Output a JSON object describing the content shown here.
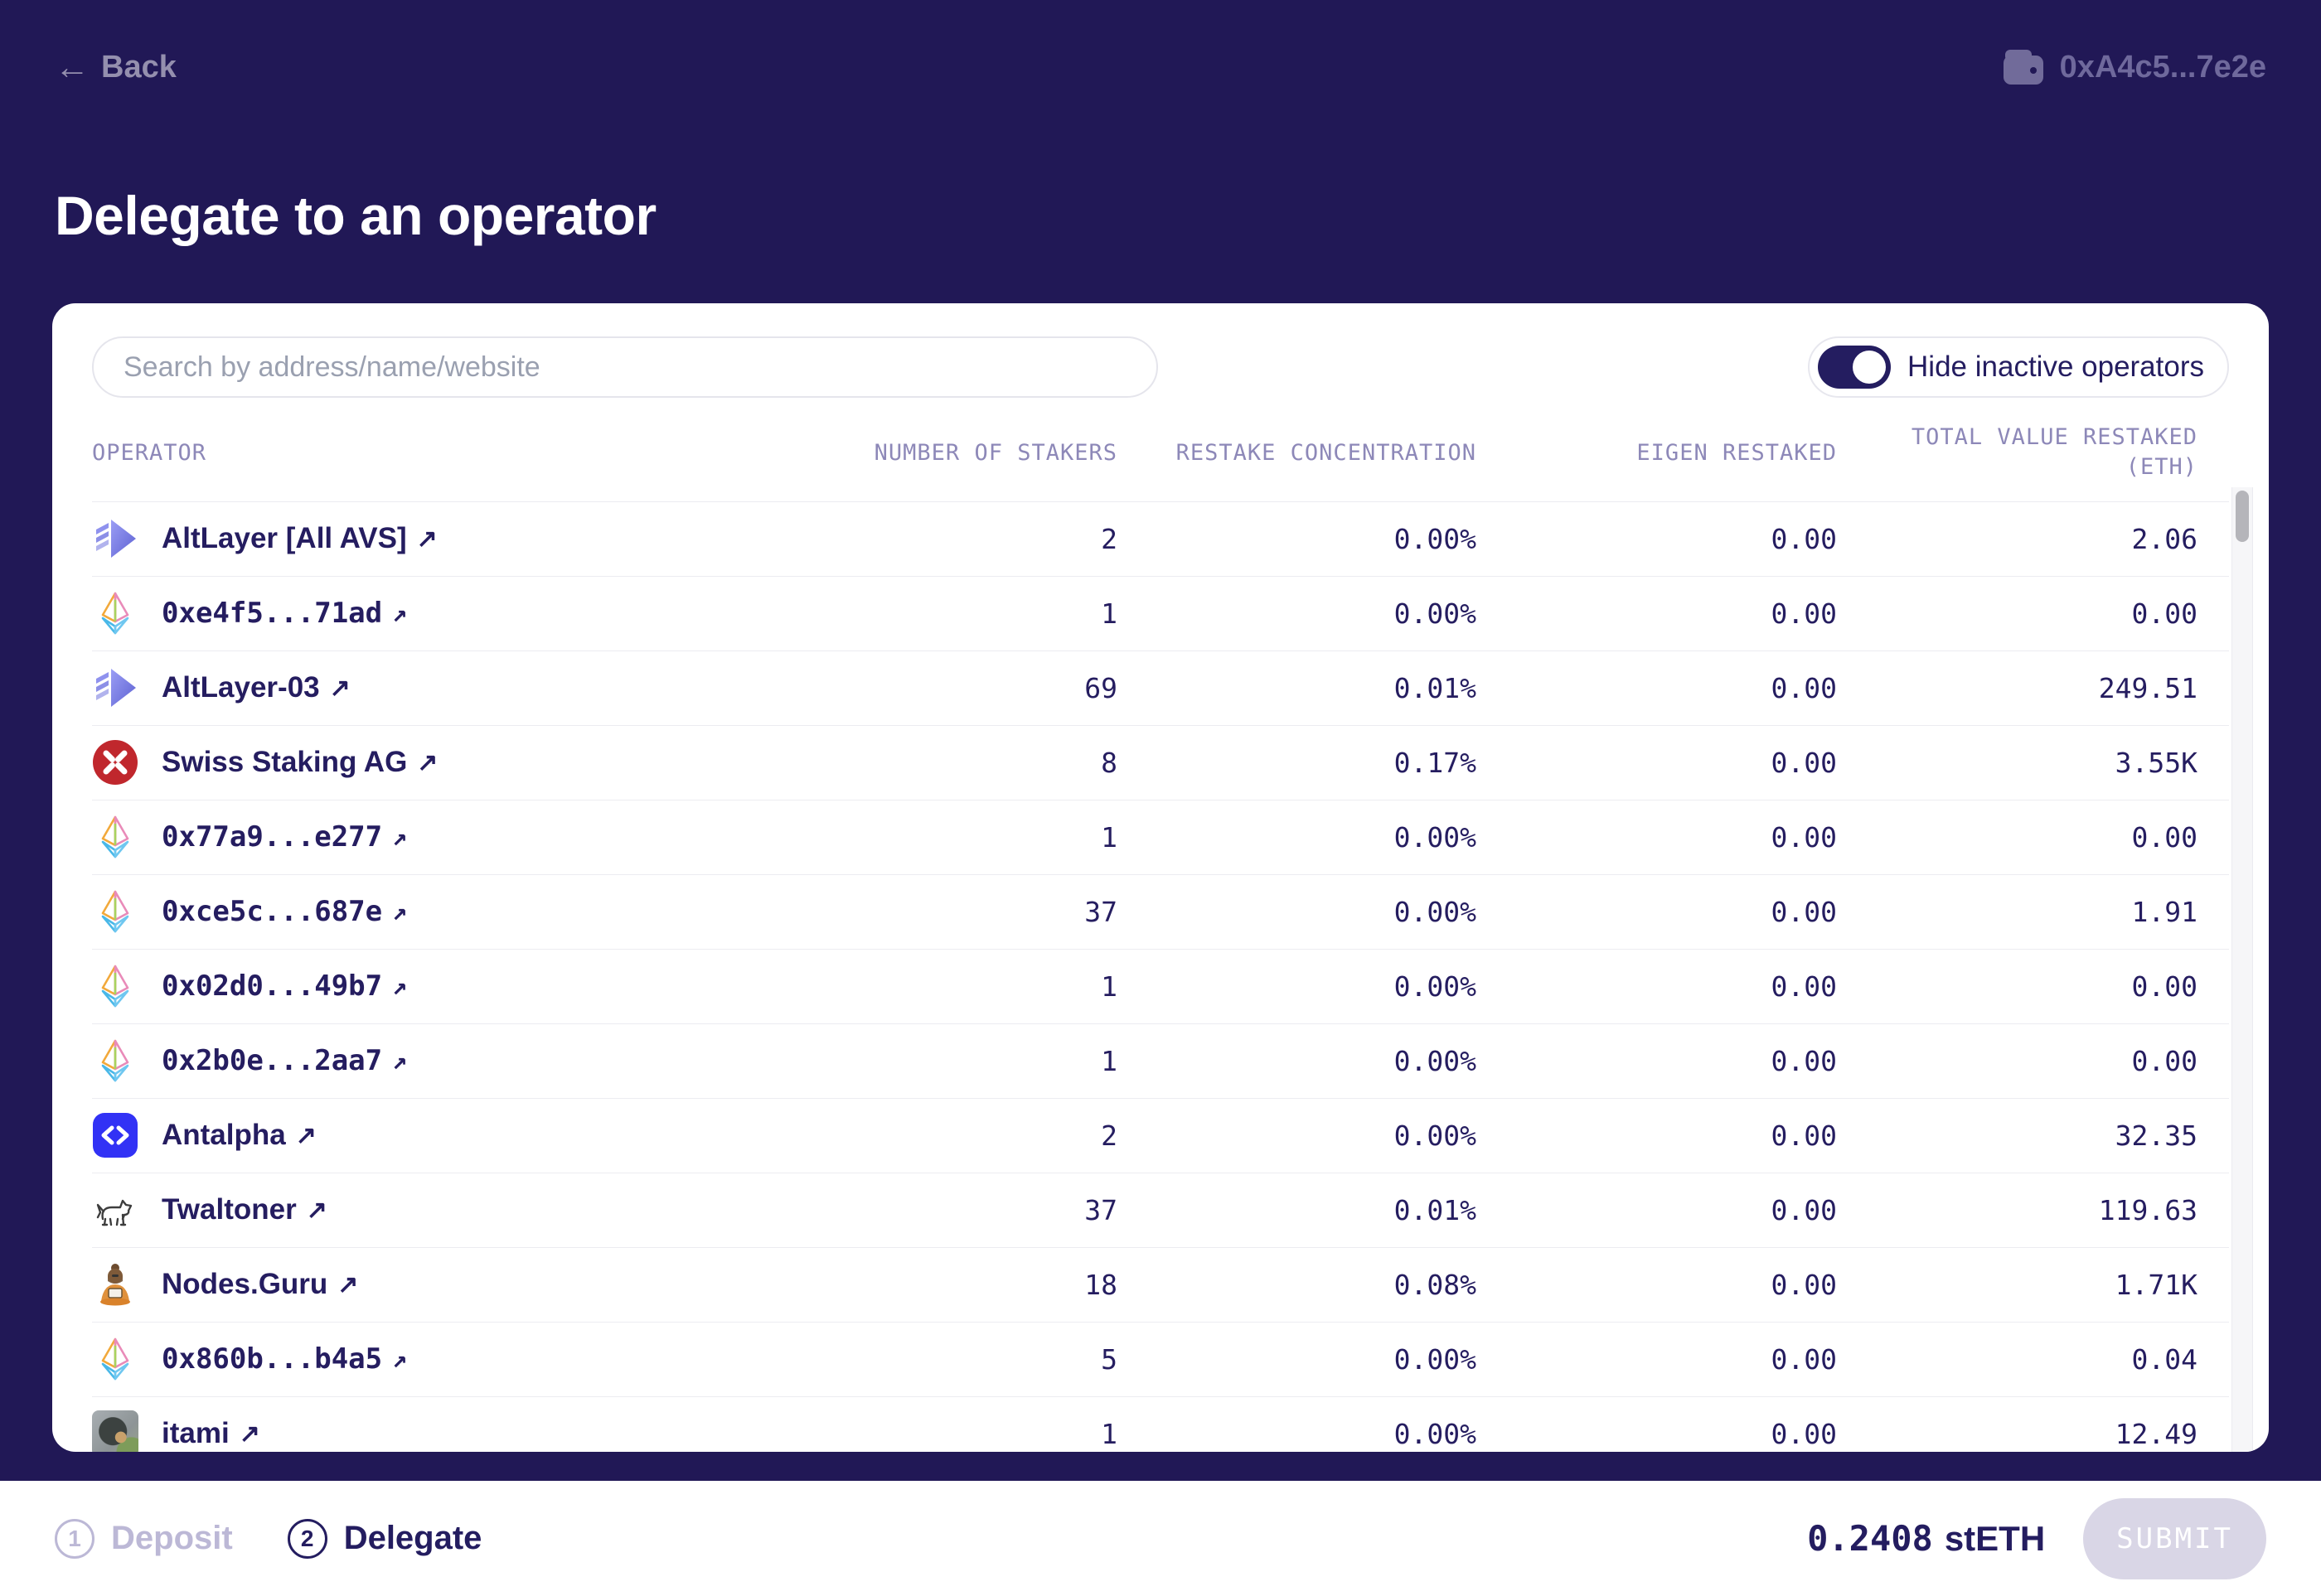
{
  "topbar": {
    "back_label": "Back",
    "wallet_address": "0xA4c5...7e2e"
  },
  "title": "Delegate to an operator",
  "panel": {
    "search_placeholder": "Search by address/name/website",
    "toggle_label": "Hide inactive operators",
    "toggle_on": true,
    "columns": {
      "operator": "OPERATOR",
      "stakers": "NUMBER OF STAKERS",
      "concentration": "RESTAKE CONCENTRATION",
      "eigen": "EIGEN RESTAKED",
      "total_line1": "TOTAL VALUE RESTAKED",
      "total_line2": "(ETH)"
    },
    "rows": [
      {
        "name": "AltLayer [All AVS]",
        "icon": "altlayer-logo",
        "mono": false,
        "stakers": "2",
        "concentration": "0.00%",
        "eigen": "0.00",
        "total": "2.06"
      },
      {
        "name": "0xe4f5...71ad",
        "icon": "eth-diamond-icon",
        "mono": true,
        "stakers": "1",
        "concentration": "0.00%",
        "eigen": "0.00",
        "total": "0.00"
      },
      {
        "name": "AltLayer-03",
        "icon": "altlayer-logo",
        "mono": false,
        "stakers": "69",
        "concentration": "0.01%",
        "eigen": "0.00",
        "total": "249.51"
      },
      {
        "name": "Swiss Staking AG",
        "icon": "swiss-staking-logo",
        "mono": false,
        "stakers": "8",
        "concentration": "0.17%",
        "eigen": "0.00",
        "total": "3.55K"
      },
      {
        "name": "0x77a9...e277",
        "icon": "eth-diamond-icon",
        "mono": true,
        "stakers": "1",
        "concentration": "0.00%",
        "eigen": "0.00",
        "total": "0.00"
      },
      {
        "name": "0xce5c...687e",
        "icon": "eth-diamond-icon",
        "mono": true,
        "stakers": "37",
        "concentration": "0.00%",
        "eigen": "0.00",
        "total": "1.91"
      },
      {
        "name": "0x02d0...49b7",
        "icon": "eth-diamond-icon",
        "mono": true,
        "stakers": "1",
        "concentration": "0.00%",
        "eigen": "0.00",
        "total": "0.00"
      },
      {
        "name": "0x2b0e...2aa7",
        "icon": "eth-diamond-icon",
        "mono": true,
        "stakers": "1",
        "concentration": "0.00%",
        "eigen": "0.00",
        "total": "0.00"
      },
      {
        "name": "Antalpha",
        "icon": "antalpha-logo",
        "mono": false,
        "stakers": "2",
        "concentration": "0.00%",
        "eigen": "0.00",
        "total": "32.35"
      },
      {
        "name": "Twaltoner",
        "icon": "dog-logo",
        "mono": false,
        "stakers": "37",
        "concentration": "0.01%",
        "eigen": "0.00",
        "total": "119.63"
      },
      {
        "name": "Nodes.Guru",
        "icon": "guru-logo",
        "mono": false,
        "stakers": "18",
        "concentration": "0.08%",
        "eigen": "0.00",
        "total": "1.71K"
      },
      {
        "name": "0x860b...b4a5",
        "icon": "eth-diamond-icon",
        "mono": true,
        "stakers": "5",
        "concentration": "0.00%",
        "eigen": "0.00",
        "total": "0.04"
      },
      {
        "name": "itami",
        "icon": "itami-avatar",
        "mono": false,
        "stakers": "1",
        "concentration": "0.00%",
        "eigen": "0.00",
        "total": "12.49"
      }
    ]
  },
  "footer": {
    "steps": [
      {
        "number": "1",
        "label": "Deposit",
        "active": false
      },
      {
        "number": "2",
        "label": "Delegate",
        "active": true
      }
    ],
    "balance_amount": "0.2408",
    "balance_unit": "stETH",
    "submit_label": "SUBMIT"
  },
  "colors": {
    "background": "#211856",
    "text_navy": "#251d60",
    "header_muted": "#8d88b8",
    "swiss_red": "#c0272d",
    "antalpha_blue": "#3232f5",
    "submit_disabled": "#d9d6e6"
  }
}
